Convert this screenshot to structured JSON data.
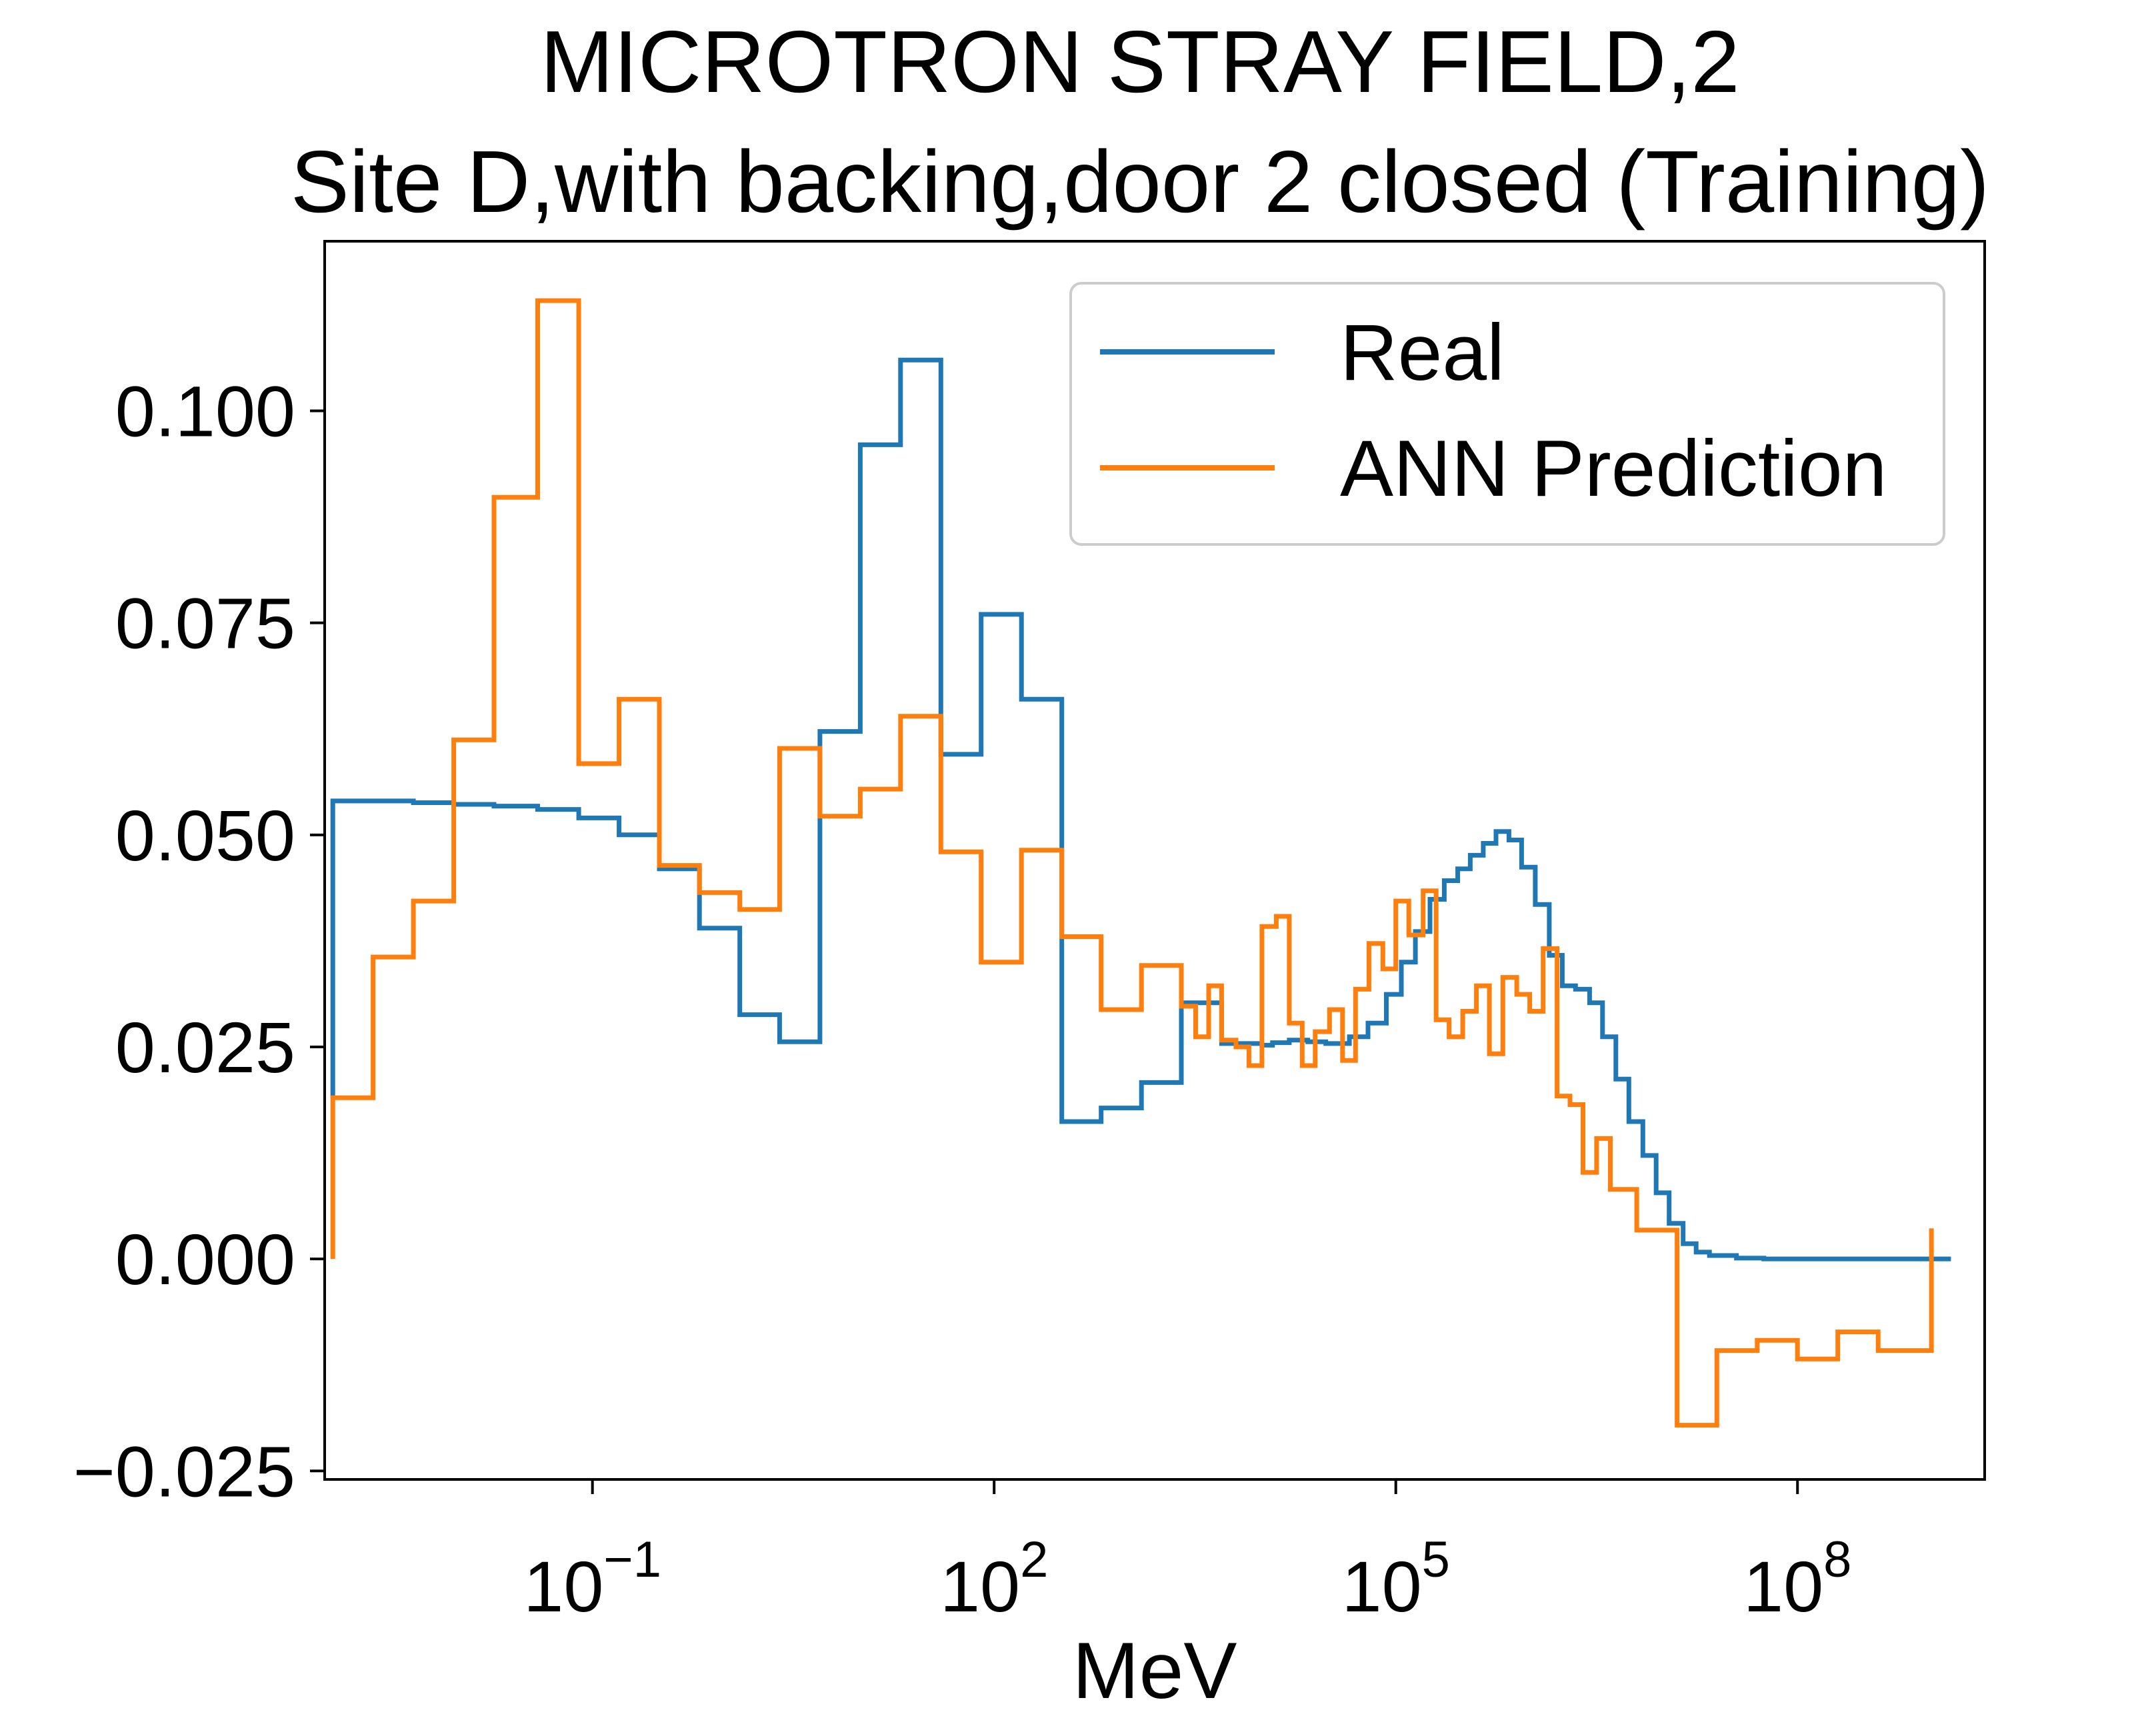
{
  "chart_data": {
    "type": "line",
    "step": "post",
    "title": "MICROTRON STRAY FIELD,2",
    "subtitle": "Site D,with backing,door 2 closed (Training)",
    "xlabel": "MeV",
    "ylabel": "",
    "xscale": "log",
    "xlim": [
      0.001,
      2500000000.0
    ],
    "ylim": [
      -0.026,
      0.12
    ],
    "xticks": [
      {
        "value": 0.1,
        "base": "10",
        "exp": "−1"
      },
      {
        "value": 100,
        "base": "10",
        "exp": "2"
      },
      {
        "value": 100000,
        "base": "10",
        "exp": "5"
      },
      {
        "value": 100000000,
        "base": "10",
        "exp": "8"
      }
    ],
    "yticks": [
      {
        "value": -0.025,
        "label": "−0.025"
      },
      {
        "value": 0.0,
        "label": "0.000"
      },
      {
        "value": 0.025,
        "label": "0.025"
      },
      {
        "value": 0.05,
        "label": "0.050"
      },
      {
        "value": 0.075,
        "label": "0.075"
      },
      {
        "value": 0.1,
        "label": "0.100"
      }
    ],
    "grid": false,
    "legend": {
      "position": "top-right"
    },
    "colors": {
      "real": "#1f77b4",
      "ann": "#ff7f0e"
    },
    "series": [
      {
        "name": "Real",
        "color": "#1f77b4",
        "points": [
          [
            0.00115,
            0.019
          ],
          [
            0.00115,
            0.054
          ],
          [
            0.0023,
            0.054
          ],
          [
            0.0046,
            0.0538
          ],
          [
            0.0092,
            0.0536
          ],
          [
            0.0184,
            0.0534
          ],
          [
            0.039,
            0.053
          ],
          [
            0.079,
            0.052
          ],
          [
            0.158,
            0.05
          ],
          [
            0.316,
            0.046
          ],
          [
            0.63,
            0.039
          ],
          [
            1.26,
            0.0288
          ],
          [
            2.5,
            0.0256
          ],
          [
            5.0,
            0.0622
          ],
          [
            10.0,
            0.096
          ],
          [
            20.0,
            0.106
          ],
          [
            40.0,
            0.0595
          ],
          [
            80.0,
            0.076
          ],
          [
            160.0,
            0.066
          ],
          [
            320.0,
            0.0162
          ],
          [
            630.0,
            0.0178
          ],
          [
            1260.0,
            0.0208
          ],
          [
            2500.0,
            0.0302
          ],
          [
            5000.0,
            0.0254
          ],
          [
            10000.0,
            0.0252
          ],
          [
            12000.0,
            0.0255
          ],
          [
            16000.0,
            0.0258
          ],
          [
            22000.0,
            0.0256
          ],
          [
            30000.0,
            0.0254
          ],
          [
            45000.0,
            0.0262
          ],
          [
            62000.0,
            0.0278
          ],
          [
            85000.0,
            0.0312
          ],
          [
            110000.0,
            0.035
          ],
          [
            140000.0,
            0.0386
          ],
          [
            180000.0,
            0.0424
          ],
          [
            230000.0,
            0.0446
          ],
          [
            290000.0,
            0.046
          ],
          [
            360000.0,
            0.0476
          ],
          [
            450000.0,
            0.049
          ],
          [
            560000.0,
            0.0504
          ],
          [
            700000.0,
            0.0494
          ],
          [
            870000.0,
            0.0462
          ],
          [
            1100000.0,
            0.0418
          ],
          [
            1400000.0,
            0.0358
          ],
          [
            1750000.0,
            0.0322
          ],
          [
            2200000.0,
            0.0318
          ],
          [
            2800000.0,
            0.0302
          ],
          [
            3500000.0,
            0.0262
          ],
          [
            4400000.0,
            0.0212
          ],
          [
            5500000.0,
            0.0162
          ],
          [
            7000000.0,
            0.0122
          ],
          [
            8800000.0,
            0.0078
          ],
          [
            11000000.0,
            0.0042
          ],
          [
            14000000.0,
            0.0018
          ],
          [
            17500000.0,
            0.0008
          ],
          [
            22000000.0,
            0.0004
          ],
          [
            35000000.0,
            0.0001
          ],
          [
            56000000.0,
            0.0
          ],
          [
            1400000000.0,
            0.0
          ]
        ]
      },
      {
        "name": "ANN Prediction",
        "color": "#ff7f0e",
        "points": [
          [
            0.00115,
            0.0
          ],
          [
            0.00115,
            0.019
          ],
          [
            0.0023,
            0.0356
          ],
          [
            0.0046,
            0.0422
          ],
          [
            0.0092,
            0.0612
          ],
          [
            0.0184,
            0.0898
          ],
          [
            0.039,
            0.113
          ],
          [
            0.079,
            0.0584
          ],
          [
            0.158,
            0.066
          ],
          [
            0.316,
            0.0464
          ],
          [
            0.63,
            0.0432
          ],
          [
            1.26,
            0.0412
          ],
          [
            2.5,
            0.0602
          ],
          [
            5.0,
            0.0522
          ],
          [
            10.0,
            0.0554
          ],
          [
            20.0,
            0.064
          ],
          [
            40.0,
            0.048
          ],
          [
            80.0,
            0.035
          ],
          [
            160.0,
            0.0482
          ],
          [
            320.0,
            0.038
          ],
          [
            630.0,
            0.0294
          ],
          [
            1260.0,
            0.0346
          ],
          [
            2500.0,
            0.0298
          ],
          [
            3200.0,
            0.0262
          ],
          [
            4000.0,
            0.0322
          ],
          [
            5000.0,
            0.0258
          ],
          [
            6400.0,
            0.025
          ],
          [
            8000.0,
            0.0228
          ],
          [
            10000.0,
            0.0392
          ],
          [
            12800.0,
            0.0404
          ],
          [
            16000.0,
            0.0278
          ],
          [
            20000.0,
            0.0228
          ],
          [
            25000.0,
            0.0268
          ],
          [
            32000.0,
            0.0294
          ],
          [
            40000.0,
            0.0234
          ],
          [
            50000.0,
            0.0318
          ],
          [
            63000.0,
            0.0372
          ],
          [
            80000.0,
            0.0342
          ],
          [
            100000.0,
            0.0422
          ],
          [
            125000.0,
            0.0382
          ],
          [
            160000.0,
            0.0434
          ],
          [
            200000.0,
            0.0282
          ],
          [
            250000.0,
            0.0262
          ],
          [
            316000.0,
            0.0292
          ],
          [
            400000.0,
            0.0322
          ],
          [
            500000.0,
            0.0242
          ],
          [
            630000.0,
            0.0332
          ],
          [
            800000.0,
            0.0312
          ],
          [
            1000000.0,
            0.0292
          ],
          [
            1260000.0,
            0.0366
          ],
          [
            1600000.0,
            0.0192
          ],
          [
            2000000.0,
            0.0182
          ],
          [
            2500000.0,
            0.0102
          ],
          [
            3160000.0,
            0.0142
          ],
          [
            4000000.0,
            0.0082
          ],
          [
            6300000.0,
            0.0034
          ],
          [
            12600000.0,
            -0.0196
          ],
          [
            25000000.0,
            -0.0108
          ],
          [
            50000000.0,
            -0.0096
          ],
          [
            100000000.0,
            -0.0118
          ],
          [
            200000000.0,
            -0.0086
          ],
          [
            400000000.0,
            -0.0108
          ],
          [
            800000000.0,
            -0.0108
          ],
          [
            1000000000.0,
            0.0036
          ]
        ]
      }
    ]
  }
}
